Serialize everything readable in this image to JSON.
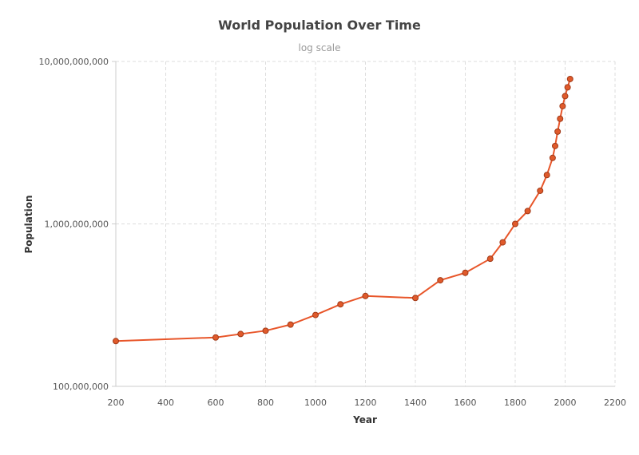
{
  "chart_data": {
    "type": "line",
    "title": "World Population Over Time",
    "subtitle": "log scale",
    "xlabel": "Year",
    "ylabel": "Population",
    "xlim": [
      200,
      2200
    ],
    "ylim": [
      100000000,
      10000000000
    ],
    "y_scale": "log",
    "grid": true,
    "x_ticks": [
      200,
      400,
      600,
      800,
      1000,
      1200,
      1400,
      1600,
      1800,
      2000,
      2200
    ],
    "x_tick_labels": [
      "200",
      "400",
      "600",
      "800",
      "1000",
      "1200",
      "1400",
      "1600",
      "1800",
      "2000",
      "2200"
    ],
    "y_ticks": [
      100000000,
      1000000000,
      10000000000
    ],
    "y_tick_labels": [
      "100,000,000",
      "1,000,000,000",
      "10,000,000,000"
    ],
    "series": [
      {
        "color": "#e8562a",
        "marker_fill": "#e05a2b",
        "marker_stroke": "#a03a18",
        "x": [
          200,
          600,
          700,
          800,
          900,
          1000,
          1100,
          1200,
          1400,
          1500,
          1600,
          1700,
          1750,
          1800,
          1850,
          1900,
          1927,
          1950,
          1960,
          1970,
          1980,
          1990,
          2000,
          2010,
          2020
        ],
        "values": [
          190000000,
          200000000,
          210000000,
          220000000,
          240000000,
          275000000,
          320000000,
          360000000,
          350000000,
          450000000,
          500000000,
          610000000,
          770000000,
          1000000000,
          1200000000,
          1600000000,
          2000000000,
          2550000000,
          3020000000,
          3700000000,
          4440000000,
          5310000000,
          6120000000,
          6930000000,
          7800000000
        ]
      }
    ]
  }
}
